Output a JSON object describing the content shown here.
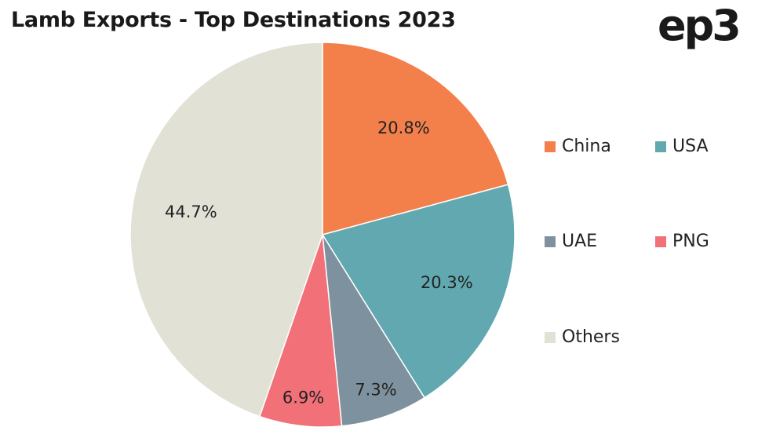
{
  "chart_data": {
    "type": "pie",
    "title": "Lamb Exports - Top Destinations 2023",
    "slices": [
      {
        "name": "China",
        "value": 20.8,
        "label": "20.8%",
        "color": "#F37F4B"
      },
      {
        "name": "USA",
        "value": 20.3,
        "label": "20.3%",
        "color": "#61A8B0"
      },
      {
        "name": "UAE",
        "value": 7.3,
        "label": "7.3%",
        "color": "#7D929E"
      },
      {
        "name": "PNG",
        "value": 6.9,
        "label": "6.9%",
        "color": "#F27078"
      },
      {
        "name": "Others",
        "value": 44.7,
        "label": "44.7%",
        "color": "#E2E1D6"
      }
    ],
    "legend": {
      "position": "right",
      "columns": 2
    }
  },
  "brand": {
    "logo_text": "ep3"
  }
}
